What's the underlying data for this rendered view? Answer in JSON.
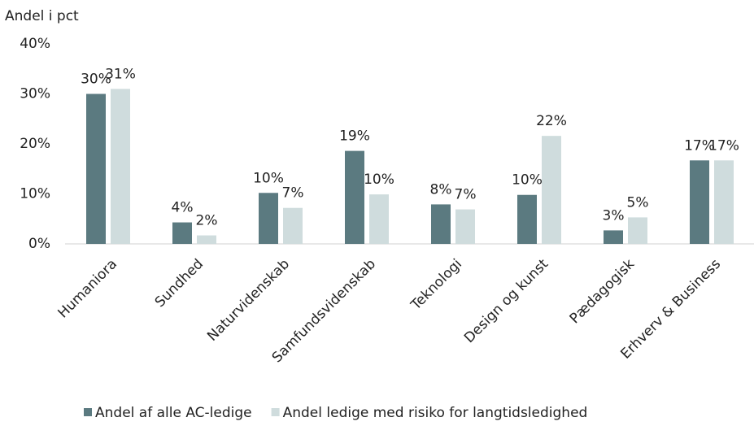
{
  "chart_data": {
    "type": "bar",
    "y_label": "Andel i pct",
    "categories": [
      "Humaniora",
      "Sundhed",
      "Naturvidenskab",
      "Samfundsvidenskab",
      "Teknologi",
      "Design og kunst",
      "Pædagogisk",
      "Erhverv & Business"
    ],
    "series": [
      {
        "name": "Andel af alle AC-ledige",
        "color": "#5b7a80",
        "values": [
          30,
          4.3,
          10.2,
          18.6,
          7.9,
          9.8,
          2.7,
          16.7
        ],
        "value_labels": [
          "30%",
          "4%",
          "10%",
          "19%",
          "8%",
          "10%",
          "3%",
          "17%"
        ]
      },
      {
        "name": "Andel ledige med risiko for langtidsledighed",
        "color": "#cfdcdd",
        "values": [
          31,
          1.7,
          7.2,
          9.9,
          6.9,
          21.6,
          5.3,
          16.7
        ],
        "value_labels": [
          "31%",
          "2%",
          "7%",
          "10%",
          "7%",
          "22%",
          "5%",
          "17%"
        ]
      }
    ],
    "ylim": [
      0,
      40
    ],
    "yticks": [
      {
        "value": 0,
        "label": "0%"
      },
      {
        "value": 10,
        "label": "10%"
      },
      {
        "value": 20,
        "label": "20%"
      },
      {
        "value": 30,
        "label": "30%"
      },
      {
        "value": 40,
        "label": "40%"
      }
    ],
    "legend": "bottom"
  }
}
